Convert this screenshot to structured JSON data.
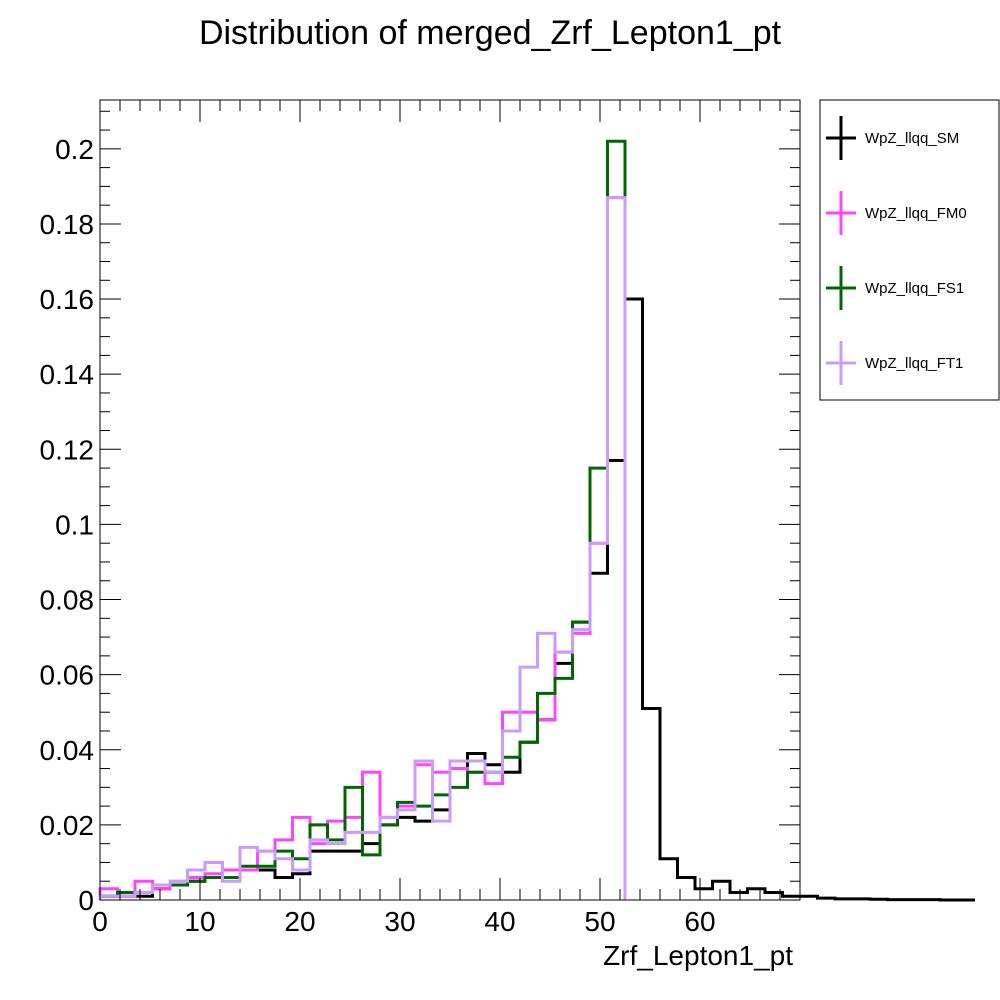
{
  "chart_data": {
    "type": "histogram-step",
    "title": "Distribution of merged_Zrf_Lepton1_pt",
    "xlabel": "Zrf_Lepton1_pt",
    "ylabel": "",
    "xlim": [
      0,
      70
    ],
    "ylim": [
      0,
      0.213
    ],
    "bin_width": 1.75,
    "x_ticks": [
      0,
      10,
      20,
      30,
      40,
      50,
      60
    ],
    "x_tick_labels": [
      "0",
      "10",
      "20",
      "30",
      "40",
      "50",
      "60"
    ],
    "y_ticks": [
      0,
      0.02,
      0.04,
      0.06,
      0.08,
      0.1,
      0.12,
      0.14,
      0.16,
      0.18,
      0.2
    ],
    "y_tick_labels": [
      "0",
      "0.02",
      "0.04",
      "0.06",
      "0.08",
      "0.1",
      "0.12",
      "0.14",
      "0.16",
      "0.18",
      "0.2"
    ],
    "grid": false,
    "legend_position": "right",
    "series": [
      {
        "name": "WpZ_llqq_SM",
        "color": "#000000",
        "values": [
          0.001,
          0.001,
          0.001,
          0.003,
          0.004,
          0.005,
          0.006,
          0.008,
          0.008,
          0.008,
          0.006,
          0.007,
          0.013,
          0.013,
          0.013,
          0.015,
          0.02,
          0.022,
          0.021,
          0.024,
          0.035,
          0.039,
          0.036,
          0.034,
          0.042,
          0.048,
          0.063,
          0.074,
          0.087,
          0.117,
          0.16,
          0.051,
          0.011,
          0.006,
          0.003,
          0.005,
          0.002,
          0.003,
          0.002,
          0.001,
          0.001,
          0.0005,
          0.0003,
          0.0003,
          0.0002,
          0.0001,
          0.0001,
          0.0001,
          0.0,
          0.0
        ]
      },
      {
        "name": "WpZ_llqq_FM0",
        "color": "#ff44ff",
        "values": [
          0.003,
          0.001,
          0.005,
          0.003,
          0.005,
          0.006,
          0.007,
          0.008,
          0.008,
          0.013,
          0.016,
          0.022,
          0.015,
          0.021,
          0.022,
          0.034,
          0.022,
          0.025,
          0.036,
          0.034,
          0.035,
          0.034,
          0.031,
          0.05,
          0.05,
          0.048,
          0.066,
          0.071,
          0.095,
          0.187
        ]
      },
      {
        "name": "WpZ_llqq_FS1",
        "color": "#006600",
        "values": [
          0.001,
          0.002,
          0.002,
          0.004,
          0.004,
          0.005,
          0.006,
          0.006,
          0.009,
          0.009,
          0.013,
          0.011,
          0.02,
          0.016,
          0.03,
          0.012,
          0.02,
          0.026,
          0.025,
          0.028,
          0.03,
          0.034,
          0.034,
          0.038,
          0.042,
          0.055,
          0.059,
          0.074,
          0.115,
          0.202
        ]
      },
      {
        "name": "WpZ_llqq_FT1",
        "color": "#cc99ff",
        "values": [
          0.001,
          0.001,
          0.002,
          0.004,
          0.005,
          0.008,
          0.01,
          0.005,
          0.014,
          0.013,
          0.011,
          0.008,
          0.016,
          0.015,
          0.018,
          0.018,
          0.022,
          0.024,
          0.037,
          0.021,
          0.037,
          0.037,
          0.034,
          0.045,
          0.062,
          0.071,
          0.066,
          0.072,
          0.095,
          0.187
        ]
      }
    ]
  }
}
